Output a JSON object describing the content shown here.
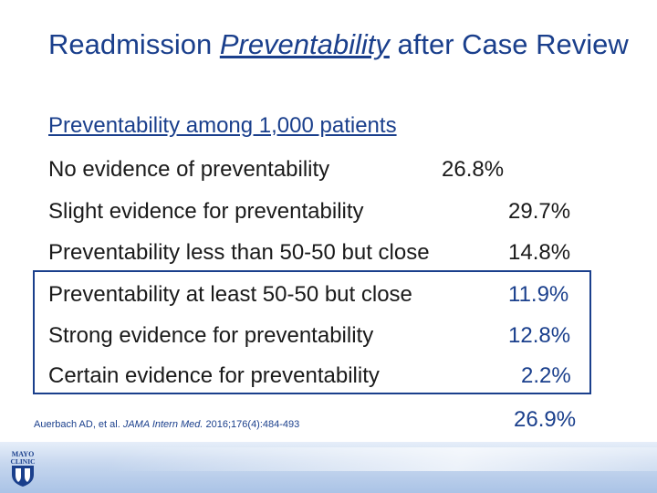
{
  "title": {
    "part1": "Readmission ",
    "part2": "Preventability",
    "part3": " after Case Review"
  },
  "subtitle": "Preventability among 1,000 patients",
  "rows": [
    {
      "label": "No evidence of preventability",
      "value": "26.8%"
    },
    {
      "label": "Slight evidence for preventability",
      "value": "29.7%"
    },
    {
      "label": "Preventability less than 50-50 but close",
      "value": "14.8%"
    },
    {
      "label": "Preventability at least 50-50 but close",
      "value": "11.9%"
    },
    {
      "label": "Strong evidence for preventability",
      "value": "12.8%"
    },
    {
      "label": "Certain evidence for preventability",
      "value": "2.2%"
    }
  ],
  "boxed_total": "26.9%",
  "citation": {
    "authors": "Auerbach AD, et al. ",
    "journal": "JAMA Intern Med.",
    "ref": " 2016;176(4):484-493"
  },
  "logo": {
    "line1": "MAYO",
    "line2": "CLINIC"
  },
  "colors": {
    "accent": "#1a3f8c",
    "text": "#1a1a1a"
  }
}
